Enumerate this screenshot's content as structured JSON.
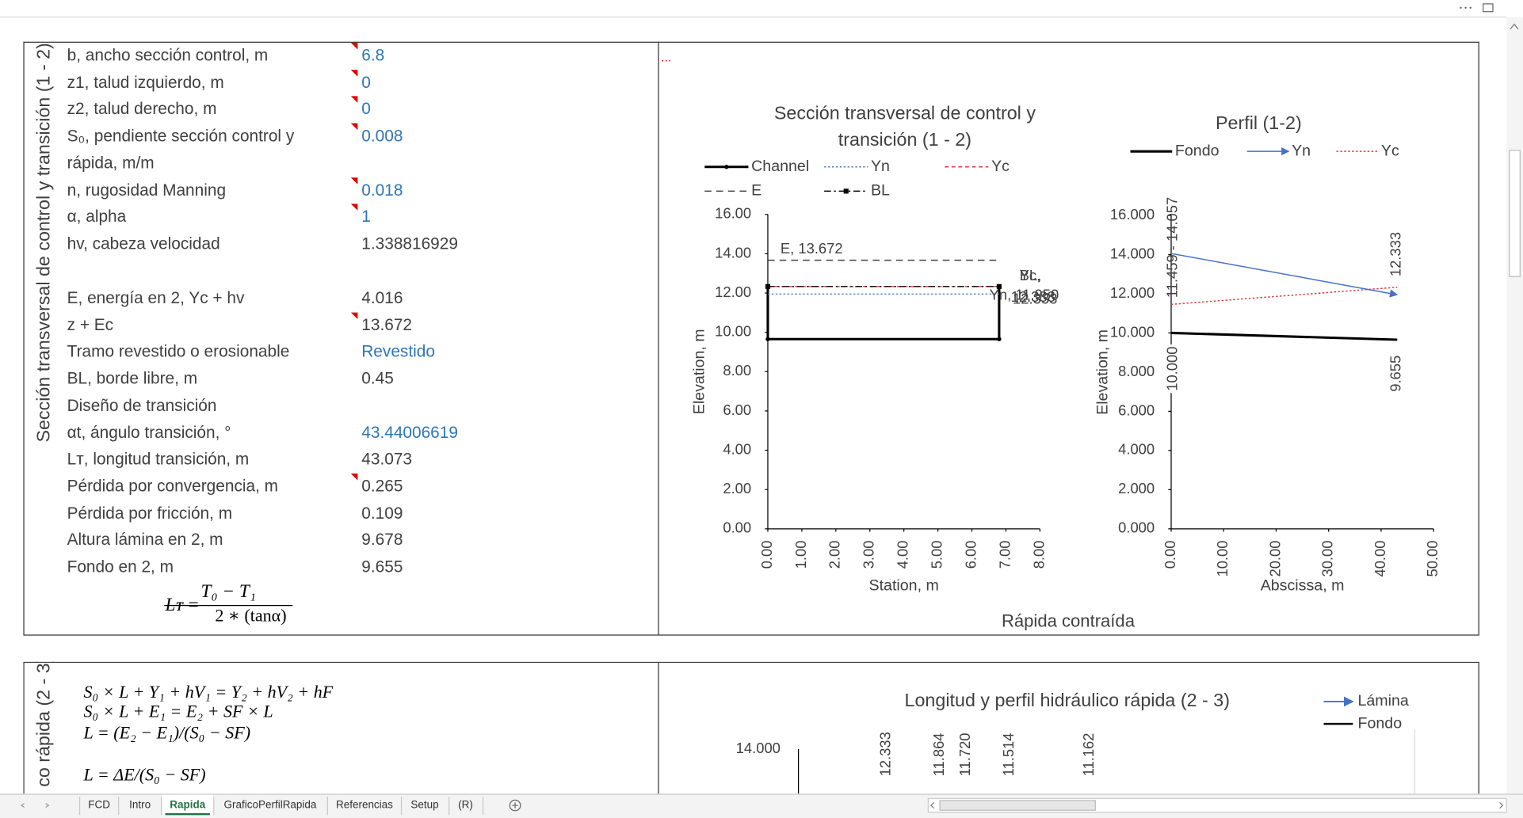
{
  "panel1": {
    "side_title": "Sección transversal de control y transición (1 - 2)",
    "rows": [
      {
        "label": "b, ancho sección control, m",
        "value": 6.8,
        "input": true,
        "comment": true
      },
      {
        "label": "z1, talud izquierdo, m",
        "value": 0,
        "input": true,
        "comment": true
      },
      {
        "label": "z2, talud derecho, m",
        "value": 0,
        "input": true,
        "comment": true
      },
      {
        "label": "S₀, pendiente sección control y",
        "value": 0.008,
        "input": true,
        "comment": true
      },
      {
        "label": "rápida, m/m"
      },
      {
        "label": "n, rugosidad Manning",
        "value": 0.018,
        "input": true,
        "comment": true
      },
      {
        "label": "α, alpha",
        "value": 1,
        "input": true,
        "comment": true
      },
      {
        "label": "hv, cabeza velocidad",
        "value": 1.338816929
      },
      {
        "label": "E, energía en 2, Yc + hv",
        "value": 4.016
      },
      {
        "label": "z + Ec",
        "value": 13.672,
        "comment": true
      },
      {
        "label": "Tramo revestido o erosionable",
        "value": "Revestido",
        "input": true
      },
      {
        "label": "BL, borde libre, m",
        "value": 0.45
      },
      {
        "label": "Diseño de transición"
      },
      {
        "label": "αt, ángulo transición, °",
        "value": 43.44006619,
        "input": true
      },
      {
        "label": "Lᴛ, longitud transición, m",
        "value": 43.073
      },
      {
        "label": "Pérdida por convergencia, m",
        "value": 0.265,
        "comment": true
      },
      {
        "label": "Pérdida por fricción, m",
        "value": 0.109
      },
      {
        "label": "Altura lámina en 2, m",
        "value": 9.678
      },
      {
        "label": "Fondo en 2, m",
        "value": 9.655
      }
    ],
    "formula": {
      "lhs": "Lᴛ =",
      "numerator": "T₀ − T₁",
      "denominator": "2 ∗ (tanα)"
    },
    "note": "...",
    "caption": "Rápida contraída"
  },
  "chart1": {
    "type": "line",
    "title": [
      "Sección transversal de control y",
      "transición (1 - 2)"
    ],
    "xlabel": "Station, m",
    "ylabel": "Elevation, m",
    "xlim": [
      0,
      8
    ],
    "ylim": [
      0,
      16
    ],
    "xticks": [
      {
        "value": 0,
        "label": "0.00"
      },
      {
        "value": 1,
        "label": "1.00"
      },
      {
        "value": 2,
        "label": "2.00"
      },
      {
        "value": 3,
        "label": "3.00"
      },
      {
        "value": 4,
        "label": "4.00"
      },
      {
        "value": 5,
        "label": "5.00"
      },
      {
        "value": 6,
        "label": "6.00"
      },
      {
        "value": 7,
        "label": "7.00"
      },
      {
        "value": 8,
        "label": "8.00"
      }
    ],
    "yticks": [
      {
        "value": 0,
        "label": "0.00"
      },
      {
        "value": 2,
        "label": "2.00"
      },
      {
        "value": 4,
        "label": "4.00"
      },
      {
        "value": 6,
        "label": "6.00"
      },
      {
        "value": 8,
        "label": "8.00"
      },
      {
        "value": 10,
        "label": "10.00"
      },
      {
        "value": 12,
        "label": "12.00"
      },
      {
        "value": 14,
        "label": "14.00"
      },
      {
        "value": 16,
        "label": "16.00"
      }
    ],
    "series": [
      {
        "name": "Channel",
        "color": "#000000",
        "style": "solid",
        "marker": "circle",
        "x": [
          0,
          0,
          6.8,
          6.8
        ],
        "y": [
          12.333,
          9.655,
          9.655,
          12.333
        ]
      },
      {
        "name": "Yn",
        "color": "#4f81bd",
        "style": "dotted",
        "x": [
          0,
          6.8
        ],
        "y": [
          11.95,
          11.95
        ]
      },
      {
        "name": "Yc",
        "color": "#e03c3c",
        "style": "dashed",
        "x": [
          0,
          6.8
        ],
        "y": [
          12.333,
          12.333
        ]
      },
      {
        "name": "E",
        "color": "#404040",
        "style": "longdash",
        "x": [
          0,
          6.8
        ],
        "y": [
          13.672,
          13.672
        ]
      },
      {
        "name": "BL",
        "color": "#000000",
        "style": "dashdot",
        "marker": "square",
        "x": [
          0,
          6.8
        ],
        "y": [
          12.333,
          12.333
        ]
      }
    ],
    "point_labels": [
      "E, 13.672",
      "BL,",
      "Yc,",
      "12.333",
      "12.333",
      "Yn, 11.950"
    ]
  },
  "chart2": {
    "type": "line",
    "title": "Perfil (1-2)",
    "xlabel": "Abscissa, m",
    "ylabel": "Elevation, m",
    "xlim": [
      0,
      50
    ],
    "ylim": [
      0,
      16
    ],
    "xticks": [
      {
        "value": 0,
        "label": "0.00"
      },
      {
        "value": 10,
        "label": "10.00"
      },
      {
        "value": 20,
        "label": "20.00"
      },
      {
        "value": 30,
        "label": "30.00"
      },
      {
        "value": 40,
        "label": "40.00"
      },
      {
        "value": 50,
        "label": "50.00"
      }
    ],
    "yticks": [
      {
        "value": 0,
        "label": "0.000"
      },
      {
        "value": 2,
        "label": "2.000"
      },
      {
        "value": 4,
        "label": "4.000"
      },
      {
        "value": 6,
        "label": "6.000"
      },
      {
        "value": 8,
        "label": "8.000"
      },
      {
        "value": 10,
        "label": "10.000"
      },
      {
        "value": 12,
        "label": "12.000"
      },
      {
        "value": 14,
        "label": "14.000"
      },
      {
        "value": 16,
        "label": "16.000"
      }
    ],
    "series": [
      {
        "name": "Fondo",
        "color": "#000000",
        "style": "solid",
        "x": [
          0,
          43.073
        ],
        "y": [
          10,
          9.655
        ]
      },
      {
        "name": "Yn",
        "color": "#4472c4",
        "style": "arrow",
        "x": [
          0,
          43.073
        ],
        "y": [
          14.057,
          11.95
        ]
      },
      {
        "name": "Yc",
        "color": "#e03c3c",
        "style": "dotted",
        "x": [
          0,
          43.073
        ],
        "y": [
          11.459,
          12.333
        ]
      }
    ],
    "point_labels": [
      "11.459 - 14.057",
      "12.333",
      "10.000",
      "9.655"
    ]
  },
  "panel2": {
    "side_title": "co rápida (2 - 3)",
    "equations": [
      "S₀ × L + Y₁ + hV₁ = Y₂ + hV₂ + hF",
      "S₀ × L + E₁ = E₂ + SF × L",
      "L = (E₂ − E₁)/(S₀ − SF)",
      "L = ΔE/(S₀ − SF)"
    ]
  },
  "chart3": {
    "title": "Longitud y perfil hidráulico rápida (2 - 3)",
    "legend": [
      {
        "name": "Lámina",
        "color": "#4472c4"
      },
      {
        "name": "Fondo",
        "color": "#000000"
      }
    ],
    "ytick_labels": [
      "14.000"
    ],
    "point_labels": [
      "12.333",
      "11.864",
      "11.720",
      "11.514",
      "11.162"
    ]
  },
  "sheet_tabs": {
    "tabs": [
      "FCD",
      "Intro",
      "Rapida",
      "GraficoPerfilRapida",
      "Referencias",
      "Setup",
      "(R)"
    ],
    "active": 2
  }
}
